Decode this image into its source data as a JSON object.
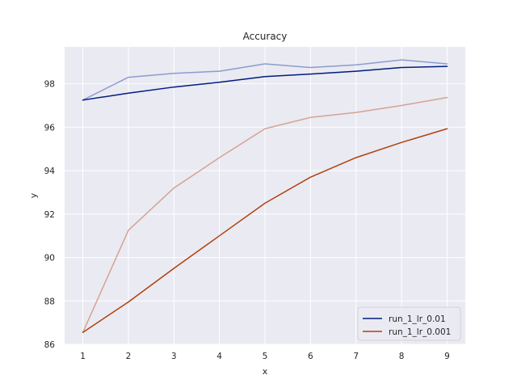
{
  "chart_data": {
    "type": "line",
    "title": "Accuracy",
    "xlabel": "x",
    "ylabel": "y",
    "x": [
      1,
      2,
      3,
      4,
      5,
      6,
      7,
      8,
      9
    ],
    "xlim": [
      0.6,
      9.4
    ],
    "ylim": [
      86,
      99.7
    ],
    "xticks": [
      "1",
      "2",
      "3",
      "4",
      "5",
      "6",
      "7",
      "8",
      "9"
    ],
    "yticks": [
      "86",
      "88",
      "90",
      "92",
      "94",
      "96",
      "98"
    ],
    "grid": true,
    "legend_position": "lower-right",
    "background": "#eaeaf2",
    "series": [
      {
        "name": "run_1_lr_0.01",
        "color": "#001c7f",
        "values": [
          97.25,
          97.57,
          97.85,
          98.07,
          98.33,
          98.45,
          98.58,
          98.75,
          98.8
        ]
      },
      {
        "name": "",
        "color": "#8c9ccc",
        "values": [
          97.25,
          98.3,
          98.48,
          98.58,
          98.92,
          98.75,
          98.87,
          99.1,
          98.92
        ]
      },
      {
        "name": "run_1_lr_0.001",
        "color": "#b1400d",
        "values": [
          86.55,
          87.95,
          89.5,
          91.0,
          92.5,
          93.7,
          94.6,
          95.3,
          95.93
        ]
      },
      {
        "name": "",
        "color": "#d6a290",
        "values": [
          86.55,
          91.25,
          93.2,
          94.6,
          95.93,
          96.45,
          96.68,
          97.0,
          97.37
        ]
      }
    ]
  }
}
